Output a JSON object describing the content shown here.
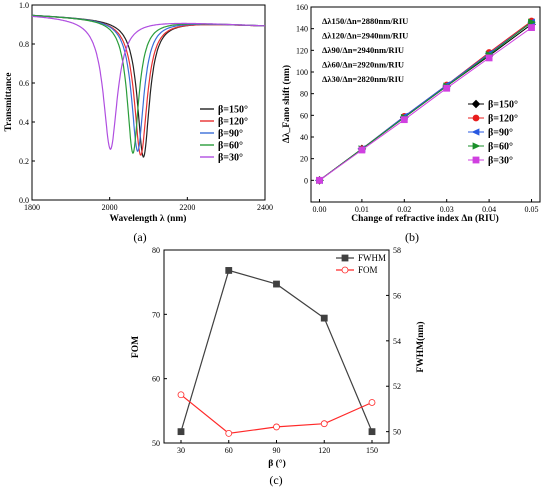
{
  "chart_data": [
    {
      "panel": "(a)",
      "type": "line",
      "xlabel": "Wavelength λ (nm)",
      "ylabel": "Transmittance",
      "xlim": [
        1800,
        2400
      ],
      "ylim": [
        0,
        1
      ],
      "xticks": [
        1800,
        2000,
        2200,
        2400
      ],
      "yticks": [
        0.0,
        0.2,
        0.4,
        0.6,
        0.8,
        1.0
      ],
      "ytick_labels": [
        "0.0",
        "0.2",
        "0.4",
        "0.6",
        "0.8",
        "1.0"
      ],
      "legend_position": "right-center",
      "series": [
        {
          "name": "β=150°",
          "color": "#222222",
          "dip_center": 2087,
          "dip_width": 19,
          "dip_min": 0.22
        },
        {
          "name": "β=120°",
          "color": "#e83030",
          "dip_center": 2080,
          "dip_width": 20,
          "dip_min": 0.23
        },
        {
          "name": "β=90°",
          "color": "#3a6fd8",
          "dip_center": 2072,
          "dip_width": 19,
          "dip_min": 0.25
        },
        {
          "name": "β=60°",
          "color": "#2a9d3a",
          "dip_center": 2060,
          "dip_width": 18,
          "dip_min": 0.24
        },
        {
          "name": "β=30°",
          "color": "#b04fe0",
          "dip_center": 2002,
          "dip_width": 22,
          "dip_min": 0.26
        }
      ],
      "baseline": {
        "start": 0.95,
        "end": 0.895
      }
    },
    {
      "panel": "(b)",
      "type": "line",
      "xlabel": "Change of refractive index Δn (RIU)",
      "ylabel": "Δλ_Fano shift (nm)",
      "xlim": [
        0,
        0.05
      ],
      "ylim": [
        -20,
        160
      ],
      "x": [
        0.0,
        0.01,
        0.02,
        0.03,
        0.04,
        0.05
      ],
      "xtick_labels": [
        "0.00",
        "0.01",
        "0.02",
        "0.03",
        "0.04",
        "0.05"
      ],
      "yticks": [
        0,
        20,
        40,
        60,
        80,
        100,
        120,
        140,
        160
      ],
      "legend_position": "bottom-right",
      "annotations": [
        "Δλ150/Δn=2880nm/RIU",
        "Δλ120/Δn=2940nm/RIU",
        "Δλ90/Δn=2940nm/RIU",
        "Δλ60/Δn=2920nm/RIU",
        "Δλ30/Δn=2820nm/RIU"
      ],
      "series": [
        {
          "name": "β=150°",
          "color": "#000000",
          "marker": "diamond",
          "values": [
            0,
            29,
            58,
            87,
            115,
            144
          ]
        },
        {
          "name": "β=120°",
          "color": "#e81c1c",
          "marker": "circle",
          "values": [
            0,
            29,
            59,
            88,
            118,
            147
          ]
        },
        {
          "name": "β=90°",
          "color": "#2858e0",
          "marker": "triangle-left",
          "values": [
            0,
            29,
            59,
            88,
            117,
            146
          ]
        },
        {
          "name": "β=60°",
          "color": "#1a8f2a",
          "marker": "triangle-right",
          "values": [
            0,
            29,
            58,
            87,
            116,
            146
          ]
        },
        {
          "name": "β=30°",
          "color": "#d040e0",
          "marker": "square",
          "values": [
            0,
            28,
            56,
            85,
            113,
            141
          ]
        }
      ]
    },
    {
      "panel": "(c)",
      "type": "line",
      "xlabel": "β (°)",
      "ylabel": "FOM",
      "ylabel_right": "FWHM(nm)",
      "categories": [
        30,
        60,
        90,
        120,
        150
      ],
      "ylim": [
        50,
        80
      ],
      "yticks": [
        50,
        60,
        70,
        80
      ],
      "ylim_right": [
        49.5,
        58
      ],
      "yticks_right": [
        50,
        52,
        54,
        56,
        58
      ],
      "legend_position": "top-right",
      "series": [
        {
          "name": "FWHM",
          "axis": "right",
          "color": "#404040",
          "marker": "square",
          "values": [
            50,
            57.1,
            56.5,
            55,
            50
          ]
        },
        {
          "name": "FOM",
          "axis": "left",
          "color": "#ff2a2a",
          "marker": "circle-open",
          "values": [
            57.5,
            51.5,
            52.5,
            53,
            56.3
          ]
        }
      ]
    }
  ]
}
